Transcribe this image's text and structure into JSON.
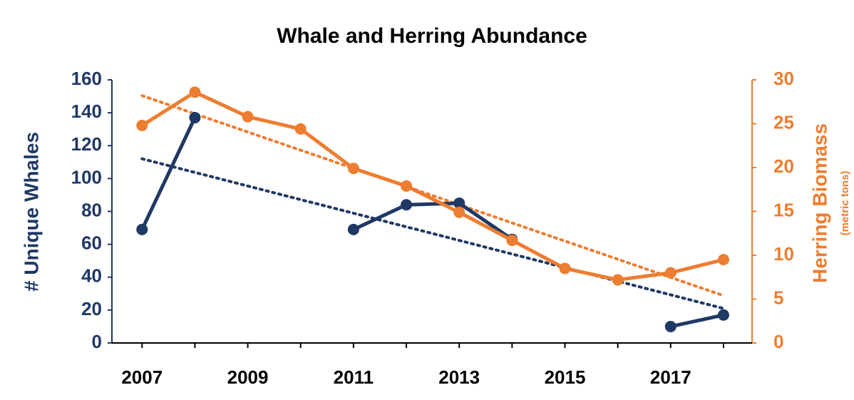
{
  "chart_data": {
    "type": "line",
    "title": "Whale and Herring Abundance",
    "y_label": "# Unique Whales",
    "y2_label": "Herring Biomass",
    "y2_sublabel": "(metric tons)",
    "x": [
      2007,
      2008,
      2009,
      2010,
      2011,
      2012,
      2013,
      2014,
      2015,
      2016,
      2017,
      2018
    ],
    "xlim": [
      2006.43,
      2018.54
    ],
    "xticks": [
      2007,
      2009,
      2011,
      2013,
      2015,
      2017
    ],
    "ylim": [
      0,
      160
    ],
    "yticks": [
      0,
      20,
      40,
      60,
      80,
      100,
      120,
      140,
      160
    ],
    "y2lim": [
      0,
      30
    ],
    "y2ticks": [
      0,
      5,
      10,
      15,
      20,
      25,
      30
    ],
    "series": [
      {
        "color": "#203864",
        "axis": "y",
        "values": [
          69,
          137,
          null,
          null,
          69,
          84,
          85,
          63,
          null,
          null,
          10,
          17
        ]
      },
      {
        "color": "#ED7D31",
        "axis": "y2",
        "values": [
          24.8,
          28.6,
          25.8,
          24.4,
          19.9,
          17.9,
          14.9,
          11.7,
          8.5,
          7.2,
          8.0,
          9.5
        ]
      }
    ],
    "trendlines": [
      {
        "color": "#203864",
        "axis": "y",
        "values": [
          112,
          21
        ]
      },
      {
        "color": "#ED7D31",
        "axis": "y2",
        "values": [
          28.2,
          5.4
        ]
      }
    ]
  }
}
